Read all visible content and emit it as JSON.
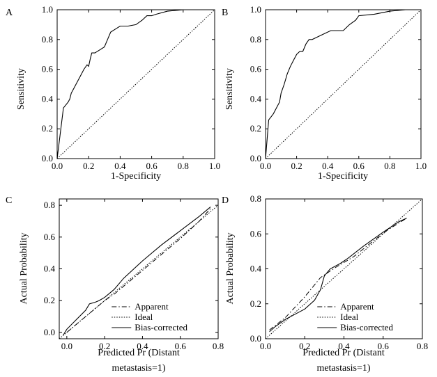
{
  "chart_data": [
    {
      "panel": "A",
      "type": "line",
      "title": "",
      "xlabel": "1-Specificity",
      "ylabel": "Sensitivity",
      "xlim": [
        0,
        1
      ],
      "ylim": [
        0,
        1
      ],
      "xticks": [
        "0.0",
        "0.2",
        "0.4",
        "0.6",
        "0.8",
        "1.0"
      ],
      "yticks": [
        "0.0",
        "0.2",
        "0.4",
        "0.6",
        "0.8",
        "1.0"
      ],
      "grid": false,
      "series": [
        {
          "style": "solid",
          "x": [
            0,
            0.04,
            0.07,
            0.08,
            0.09,
            0.11,
            0.13,
            0.15,
            0.17,
            0.19,
            0.2,
            0.21,
            0.22,
            0.24,
            0.27,
            0.3,
            0.32,
            0.34,
            0.37,
            0.4,
            0.45,
            0.5,
            0.54,
            0.57,
            0.6,
            0.63,
            0.7,
            0.8,
            0.9,
            1.0
          ],
          "y": [
            0,
            0.34,
            0.38,
            0.4,
            0.44,
            0.48,
            0.52,
            0.56,
            0.6,
            0.63,
            0.62,
            0.67,
            0.71,
            0.71,
            0.73,
            0.75,
            0.8,
            0.85,
            0.87,
            0.89,
            0.89,
            0.9,
            0.93,
            0.96,
            0.96,
            0.97,
            0.99,
            1.0,
            1.0,
            1.0
          ]
        },
        {
          "style": "dotted",
          "x": [
            0,
            1
          ],
          "y": [
            0,
            1
          ]
        }
      ]
    },
    {
      "panel": "B",
      "type": "line",
      "title": "",
      "xlabel": "1-Specificity",
      "ylabel": "Sensitivity",
      "xlim": [
        0,
        1
      ],
      "ylim": [
        0,
        1
      ],
      "xticks": [
        "0.0",
        "0.2",
        "0.4",
        "0.6",
        "0.8",
        "1.0"
      ],
      "yticks": [
        "0.0",
        "0.2",
        "0.4",
        "0.6",
        "0.8",
        "1.0"
      ],
      "grid": false,
      "series": [
        {
          "style": "solid",
          "x": [
            0,
            0.02,
            0.05,
            0.07,
            0.09,
            0.1,
            0.12,
            0.14,
            0.16,
            0.18,
            0.2,
            0.22,
            0.24,
            0.26,
            0.28,
            0.3,
            0.34,
            0.38,
            0.42,
            0.46,
            0.5,
            0.54,
            0.58,
            0.6,
            0.7,
            0.8,
            0.9,
            1.0
          ],
          "y": [
            0,
            0.26,
            0.3,
            0.34,
            0.38,
            0.44,
            0.5,
            0.57,
            0.62,
            0.66,
            0.7,
            0.72,
            0.72,
            0.77,
            0.8,
            0.8,
            0.82,
            0.84,
            0.86,
            0.86,
            0.86,
            0.9,
            0.93,
            0.96,
            0.97,
            0.99,
            1.0,
            1.0
          ]
        },
        {
          "style": "dotted",
          "x": [
            0,
            1
          ],
          "y": [
            0,
            1
          ]
        }
      ]
    },
    {
      "panel": "C",
      "type": "line",
      "title": "",
      "xlabel": "Predicted Pr (Distant metastasis=1)",
      "ylabel": "Actual Probability",
      "xlim": [
        -0.04,
        0.8
      ],
      "ylim": [
        -0.04,
        0.84
      ],
      "xticks": [
        "0.0",
        "0.2",
        "0.4",
        "0.6",
        "0.8"
      ],
      "yticks": [
        "0.0",
        "0.2",
        "0.4",
        "0.6",
        "0.8"
      ],
      "grid": false,
      "legend": {
        "placement": "bottom-right",
        "entries": [
          {
            "label": "Apparent",
            "style": "dashdot"
          },
          {
            "label": "Ideal",
            "style": "dotted"
          },
          {
            "label": "Bias-corrected",
            "style": "solid"
          }
        ]
      },
      "series": [
        {
          "name": "Apparent",
          "style": "dashdot",
          "x": [
            0,
            0.05,
            0.1,
            0.15,
            0.2,
            0.25,
            0.3,
            0.4,
            0.5,
            0.6,
            0.7,
            0.76
          ],
          "y": [
            0,
            0.05,
            0.1,
            0.15,
            0.2,
            0.24,
            0.29,
            0.39,
            0.49,
            0.59,
            0.7,
            0.78
          ]
        },
        {
          "name": "Ideal",
          "style": "dotted",
          "x": [
            -0.04,
            0.8
          ],
          "y": [
            -0.04,
            0.8
          ]
        },
        {
          "name": "Bias-corrected",
          "style": "solid",
          "x": [
            -0.02,
            0.0,
            0.05,
            0.1,
            0.12,
            0.15,
            0.17,
            0.2,
            0.25,
            0.3,
            0.4,
            0.5,
            0.6,
            0.7,
            0.76
          ],
          "y": [
            -0.02,
            0.02,
            0.08,
            0.14,
            0.18,
            0.19,
            0.2,
            0.22,
            0.27,
            0.34,
            0.45,
            0.55,
            0.64,
            0.73,
            0.79
          ]
        }
      ]
    },
    {
      "panel": "D",
      "type": "line",
      "title": "",
      "xlabel": "Predicted Pr (Distant metastasis=1)",
      "ylabel": "Actual Probability",
      "xlim": [
        0,
        0.8
      ],
      "ylim": [
        0,
        0.8
      ],
      "xticks": [
        "0.0",
        "0.2",
        "0.4",
        "0.6",
        "0.8"
      ],
      "yticks": [
        "0.0",
        "0.2",
        "0.4",
        "0.6",
        "0.8"
      ],
      "grid": false,
      "legend": {
        "placement": "bottom-right",
        "entries": [
          {
            "label": "Apparent",
            "style": "dashdot"
          },
          {
            "label": "Ideal",
            "style": "dotted"
          },
          {
            "label": "Bias-corrected",
            "style": "solid"
          }
        ]
      },
      "series": [
        {
          "name": "Apparent",
          "style": "dashdot",
          "x": [
            0.02,
            0.1,
            0.2,
            0.28,
            0.32,
            0.36,
            0.45,
            0.55,
            0.62,
            0.72
          ],
          "y": [
            0.05,
            0.12,
            0.24,
            0.35,
            0.38,
            0.41,
            0.47,
            0.56,
            0.62,
            0.69
          ]
        },
        {
          "name": "Ideal",
          "style": "dotted",
          "x": [
            0,
            0.8
          ],
          "y": [
            0,
            0.8
          ]
        },
        {
          "name": "Bias-corrected",
          "style": "solid",
          "x": [
            0.02,
            0.05,
            0.1,
            0.15,
            0.2,
            0.25,
            0.28,
            0.3,
            0.33,
            0.38,
            0.42,
            0.5,
            0.6,
            0.68,
            0.72
          ],
          "y": [
            0.04,
            0.07,
            0.11,
            0.14,
            0.17,
            0.22,
            0.28,
            0.36,
            0.4,
            0.43,
            0.46,
            0.53,
            0.61,
            0.67,
            0.69
          ]
        }
      ]
    }
  ]
}
